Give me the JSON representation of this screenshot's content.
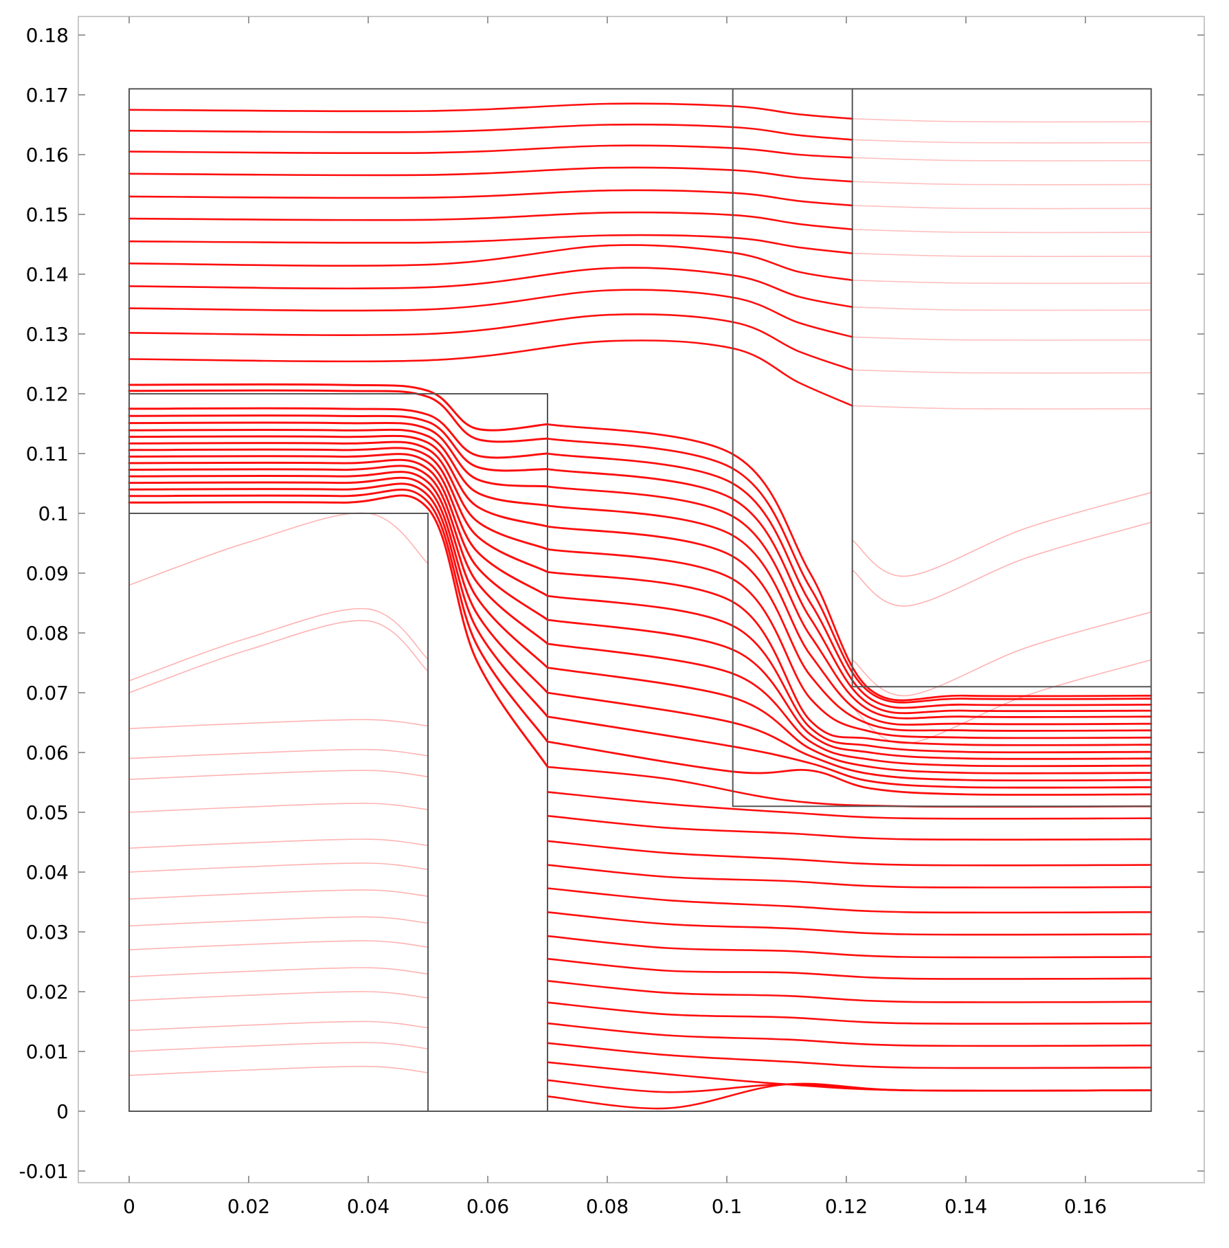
{
  "chart_data": {
    "type": "line",
    "title": "",
    "xlabel": "",
    "ylabel": "",
    "xlim": [
      -0.0085,
      0.18
    ],
    "ylim": [
      -0.012,
      0.1855
    ],
    "x_ticks": [
      {
        "value": 0,
        "label": "0"
      },
      {
        "value": 0.02,
        "label": "0.02"
      },
      {
        "value": 0.04,
        "label": "0.04"
      },
      {
        "value": 0.06,
        "label": "0.06"
      },
      {
        "value": 0.08,
        "label": "0.08"
      },
      {
        "value": 0.1,
        "label": "0.1"
      },
      {
        "value": 0.12,
        "label": "0.12"
      },
      {
        "value": 0.14,
        "label": "0.14"
      },
      {
        "value": 0.16,
        "label": "0.16"
      }
    ],
    "y_ticks": [
      {
        "value": 0.18,
        "label": "0.18"
      },
      {
        "value": 0.17,
        "label": "0.17"
      },
      {
        "value": 0.16,
        "label": "0.16"
      },
      {
        "value": 0.15,
        "label": "0.15"
      },
      {
        "value": 0.14,
        "label": "0.14"
      },
      {
        "value": 0.13,
        "label": "0.13"
      },
      {
        "value": 0.12,
        "label": "0.12"
      },
      {
        "value": 0.11,
        "label": "0.11"
      },
      {
        "value": 0.1,
        "label": "0.1"
      },
      {
        "value": 0.09,
        "label": "0.09"
      },
      {
        "value": 0.08,
        "label": "0.08"
      },
      {
        "value": 0.07,
        "label": "0.07"
      },
      {
        "value": 0.06,
        "label": "0.06"
      },
      {
        "value": 0.05,
        "label": "0.05"
      },
      {
        "value": 0.04,
        "label": "0.04"
      },
      {
        "value": 0.03,
        "label": "0.03"
      },
      {
        "value": 0.02,
        "label": "0.02"
      },
      {
        "value": 0.01,
        "label": "0.01"
      },
      {
        "value": 0,
        "label": "0"
      },
      {
        "value": -0.01,
        "label": "-0.01"
      }
    ],
    "grid": false,
    "domain": {
      "outer_box": {
        "x": [
          0,
          0.171
        ],
        "y": [
          0,
          0.171
        ]
      },
      "region_boundaries": [
        [
          [
            0,
            0.1
          ],
          [
            0.05,
            0.1
          ],
          [
            0.05,
            0
          ]
        ],
        [
          [
            0,
            0.12
          ],
          [
            0.07,
            0.12
          ],
          [
            0.07,
            0
          ]
        ],
        [
          [
            0.101,
            0.171
          ],
          [
            0.101,
            0.051
          ],
          [
            0.171,
            0.051
          ]
        ],
        [
          [
            0.121,
            0.171
          ],
          [
            0.121,
            0.071
          ],
          [
            0.171,
            0.071
          ]
        ]
      ]
    },
    "streamlines": {
      "color": "#ff0000",
      "description_of_paths": "y position at key x stations for each streamline",
      "stations_x": [
        0,
        0.045,
        0.05,
        0.055,
        0.07,
        0.101,
        0.116,
        0.121,
        0.126,
        0.171
      ],
      "upper_lines_start_y": [
        0.1675,
        0.164,
        0.1605,
        0.1568,
        0.153,
        0.1493,
        0.1455,
        0.1418,
        0.138,
        0.1343,
        0.1302,
        0.1258
      ],
      "upper_lines_end_y_at_x0_121": [
        0.166,
        0.1625,
        0.1595,
        0.1555,
        0.1515,
        0.1475,
        0.1435,
        0.139,
        0.1345,
        0.1295,
        0.124,
        0.118
      ],
      "inlet_channel_y": [
        0.1215,
        0.1205,
        0.1175,
        0.1163,
        0.1151,
        0.1139,
        0.1128,
        0.1117,
        0.1106,
        0.1095,
        0.1084,
        0.1073,
        0.1062,
        0.1051,
        0.104,
        0.1029,
        0.1018
      ],
      "middle_lines_y_at_x0_07": [
        0.1149,
        0.1125,
        0.11,
        0.1074,
        0.1045,
        0.1013,
        0.0978,
        0.094,
        0.0902,
        0.0862,
        0.0822,
        0.0782,
        0.0742,
        0.07,
        0.066,
        0.0618,
        0.0576,
        0.0534,
        0.0494,
        0.0452,
        0.0412,
        0.0373,
        0.0333,
        0.0293,
        0.0255,
        0.0218,
        0.0182,
        0.0147,
        0.0114,
        0.0082,
        0.0052,
        0.0025
      ],
      "outlet_channel_y": [
        0.0695,
        0.069,
        0.068,
        0.067,
        0.066,
        0.0648,
        0.0637,
        0.0625,
        0.0613,
        0.0601,
        0.059,
        0.0578,
        0.0566,
        0.0554,
        0.0542,
        0.053
      ],
      "lower_outlet_y": [
        0.051,
        0.049,
        0.0455,
        0.0412,
        0.0375,
        0.0333,
        0.0296,
        0.0258,
        0.0222,
        0.0183,
        0.0147,
        0.011,
        0.0073,
        0.0035
      ]
    }
  }
}
